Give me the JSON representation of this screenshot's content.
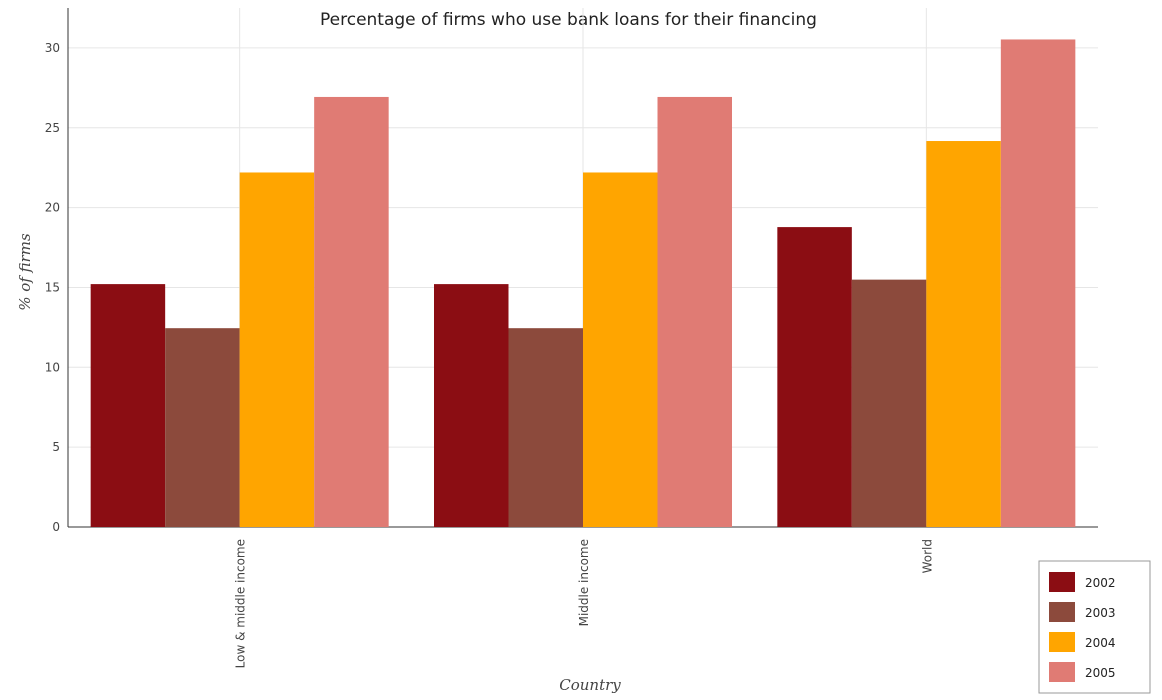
{
  "chart_data": {
    "type": "bar",
    "title": "Percentage of firms who use bank loans for their financing",
    "xlabel": "Country",
    "ylabel": "% of firms",
    "categories": [
      "Low & middle income",
      "Middle income",
      "World"
    ],
    "series": [
      {
        "name": "2002",
        "color": "#8b0d13",
        "values": [
          15.21,
          15.21,
          18.78
        ]
      },
      {
        "name": "2003",
        "color": "#8c4a3c",
        "values": [
          12.45,
          12.45,
          15.49
        ]
      },
      {
        "name": "2004",
        "color": "#ffa500",
        "values": [
          22.2,
          22.2,
          24.17
        ]
      },
      {
        "name": "2005",
        "color": "#e07b74",
        "values": [
          26.93,
          26.93,
          30.53
        ]
      }
    ],
    "ylim": [
      0,
      32.5
    ],
    "yticks": [
      0,
      5,
      10,
      15,
      20,
      25,
      30
    ],
    "grid": true,
    "legend_position": "bottom-right"
  }
}
